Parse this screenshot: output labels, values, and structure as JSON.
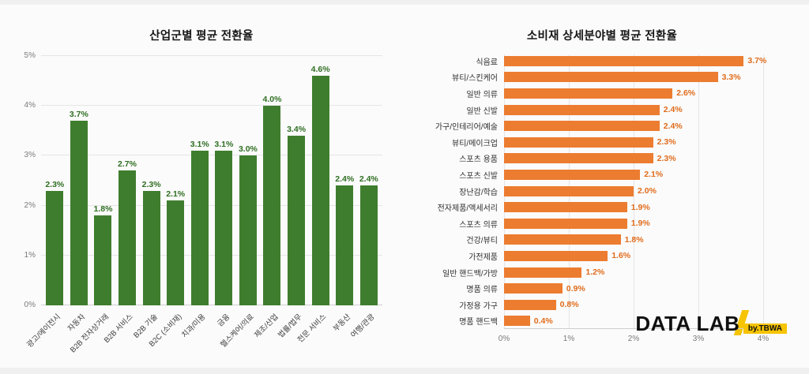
{
  "page": {
    "background": "#fbfbfb"
  },
  "logo": {
    "title": "DATA LAB",
    "badge": "by.TBWA",
    "accent_color": "#f6c400"
  },
  "chart_data": [
    {
      "type": "bar",
      "orientation": "vertical",
      "title": "산업군별 평균 전환율",
      "categories": [
        "광고/에이전시",
        "자동차",
        "B2B 전자상거래",
        "B2B 서비스",
        "B2B 기술",
        "B2C (소비재)",
        "치과/미용",
        "금융",
        "헬스케어/의료",
        "제조/산업",
        "법률/법무",
        "전문 서비스",
        "부동산",
        "여행/관광"
      ],
      "values": [
        2.3,
        3.7,
        1.8,
        2.7,
        2.3,
        2.1,
        3.1,
        3.1,
        3.0,
        4.0,
        3.4,
        4.6,
        2.4,
        2.4
      ],
      "value_labels": [
        "2.3%",
        "3.7%",
        "1.8%",
        "2.7%",
        "2.3%",
        "2.1%",
        "3.1%",
        "3.1%",
        "3.0%",
        "4.0%",
        "3.4%",
        "4.6%",
        "2.4%",
        "2.4%"
      ],
      "ylim": [
        0,
        5
      ],
      "y_ticks": [
        "0%",
        "1%",
        "2%",
        "3%",
        "4%",
        "5%"
      ],
      "grid": true,
      "legend": "none",
      "bar_color": "#3f7d2e",
      "value_label_color": "#2f6e22"
    },
    {
      "type": "bar",
      "orientation": "horizontal",
      "title": "소비재 상세분야별 평균 전환율",
      "categories": [
        "식음료",
        "뷰티/스킨케어",
        "일반 의류",
        "일반 신발",
        "가구/인테리어/예술",
        "뷰티/메이크업",
        "스포츠 용품",
        "스포츠 신발",
        "장난감/학습",
        "전자제품/액세서리",
        "스포츠 의류",
        "건강/뷰티",
        "가전제품",
        "일반 핸드백/가방",
        "명품 의류",
        "가정용 가구",
        "명품 핸드백"
      ],
      "values": [
        3.7,
        3.3,
        2.6,
        2.4,
        2.4,
        2.3,
        2.3,
        2.1,
        2.0,
        1.9,
        1.9,
        1.8,
        1.6,
        1.2,
        0.9,
        0.8,
        0.4
      ],
      "value_labels": [
        "3.7%",
        "3.3%",
        "2.6%",
        "2.4%",
        "2.4%",
        "2.3%",
        "2.3%",
        "2.1%",
        "2.0%",
        "1.9%",
        "1.9%",
        "1.8%",
        "1.6%",
        "1.2%",
        "0.9%",
        "0.8%",
        "0.4%"
      ],
      "xlim": [
        0,
        4
      ],
      "x_ticks": [
        "0%",
        "1%",
        "2%",
        "3%",
        "4%"
      ],
      "grid": true,
      "legend": "none",
      "bar_color": "#ec7c30",
      "value_label_color": "#e06c1c"
    }
  ]
}
